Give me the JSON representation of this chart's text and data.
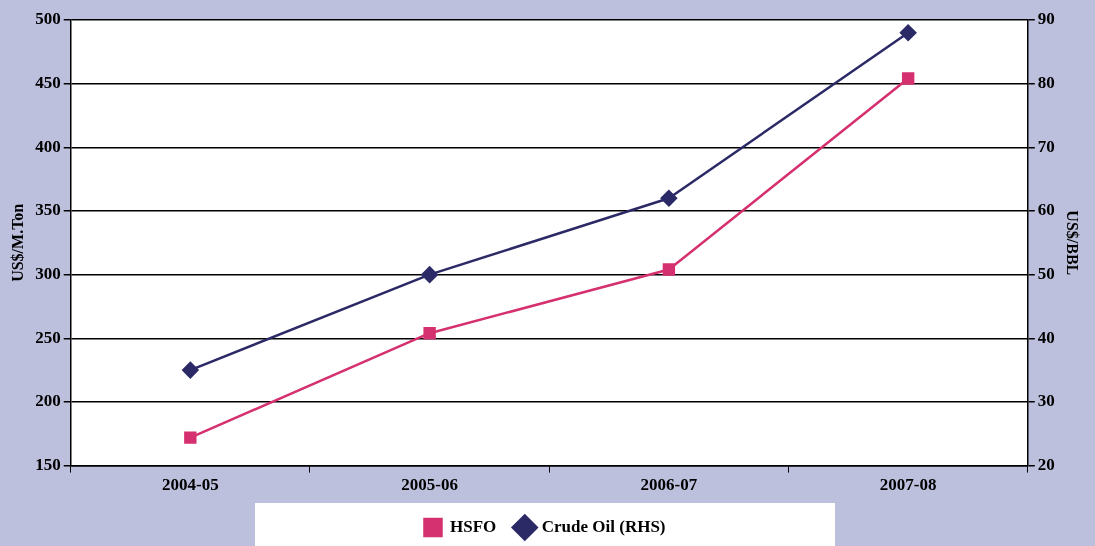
{
  "chart_data": {
    "type": "line",
    "ylabel": "US$/M.Ton",
    "y2label": "US$/BBL",
    "categories": [
      "2004-05",
      "2005-06",
      "2006-07",
      "2007-08"
    ],
    "series": [
      {
        "name": "HSFO",
        "color": "#d5306f",
        "marker": "square",
        "values": [
          172,
          254,
          304,
          454
        ]
      },
      {
        "name": "Crude Oil (RHS)",
        "color": "#2b2a66",
        "marker": "diamond",
        "axis": "y2",
        "values": [
          35,
          50,
          62,
          88
        ]
      }
    ],
    "ylim": [
      150,
      500
    ],
    "yticks": [
      150,
      200,
      250,
      300,
      350,
      400,
      450,
      500
    ],
    "y2lim": [
      20,
      90
    ],
    "y2ticks": [
      20,
      30,
      40,
      50,
      60,
      70,
      80,
      90
    ],
    "grid": "y",
    "legend": "bottom"
  }
}
